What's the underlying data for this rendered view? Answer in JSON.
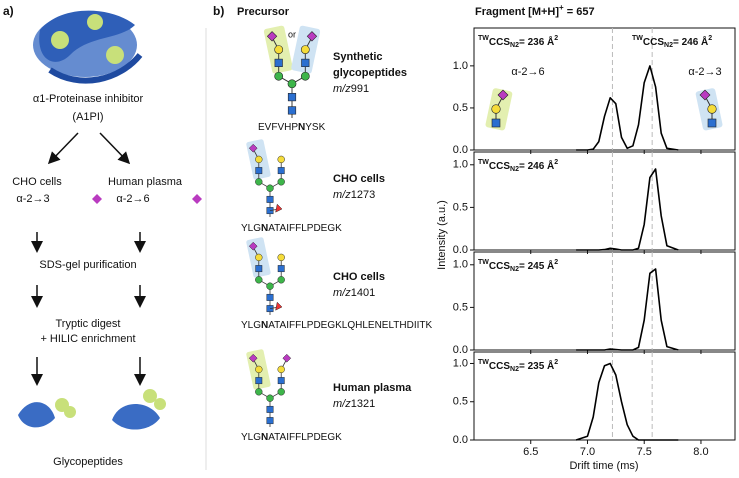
{
  "panel_a": {
    "label": "a)",
    "protein": [
      "α1-Proteinase inhibitor",
      "(A1PI)"
    ],
    "sources": [
      {
        "name": "CHO cells",
        "linkage": "α-2→3"
      },
      {
        "name": "Human plasma",
        "linkage": "α-2→6"
      }
    ],
    "steps": [
      [
        "SDS-gel purification"
      ],
      [
        "Tryptic digest",
        "+ HILIC enrichment"
      ]
    ],
    "product": "Glycopeptides"
  },
  "panel_b": {
    "label": "b)",
    "heading": "Precursor",
    "or": "or",
    "mz_label": "m/z",
    "entries": [
      {
        "name": [
          "Synthetic",
          "glycopeptides"
        ],
        "mz": 991,
        "peptide": [
          "EVFVHP",
          "N",
          "YSK"
        ]
      },
      {
        "name": [
          "CHO cells"
        ],
        "mz": 1273,
        "peptide": [
          "YLG",
          "N",
          "ATAIFFLPDEGK"
        ]
      },
      {
        "name": [
          "CHO cells"
        ],
        "mz": 1401,
        "peptide": [
          "YLG",
          "N",
          "ATAIFFLPDEGKLQHLENELTHDIITK"
        ]
      },
      {
        "name": [
          "Human plasma"
        ],
        "mz": 1321,
        "peptide": [
          "YLG",
          "N",
          "ATAIFFLPDEGK"
        ]
      }
    ]
  },
  "panel_c": {
    "title": [
      "Fragment [M+H]",
      "+",
      " = 657"
    ],
    "xlabel": "Drift time (ms)",
    "ylabel": "Intensity (a.u.)"
  },
  "chart_data": [
    {
      "type": "line",
      "color": "#000000",
      "x": [
        6.9,
        7.0,
        7.05,
        7.1,
        7.15,
        7.2,
        7.25,
        7.3,
        7.35,
        7.4,
        7.45,
        7.5,
        7.55,
        7.6,
        7.65,
        7.7,
        7.8
      ],
      "values": [
        0,
        0,
        0.01,
        0.1,
        0.4,
        0.62,
        0.55,
        0.15,
        0.02,
        0.05,
        0.3,
        0.8,
        1.0,
        0.75,
        0.2,
        0.02,
        0
      ],
      "xlim": [
        6.0,
        8.3
      ],
      "ylim": [
        0,
        1.45
      ],
      "xticks": [
        6.5,
        {
          "value": 7,
          "label": "7.0"
        },
        7.5,
        {
          "value": 8,
          "label": "8.0"
        }
      ],
      "yticks": [
        {
          "value": 0,
          "label": "0.0"
        },
        0.5,
        {
          "value": 1,
          "label": "1.0"
        }
      ],
      "reference_lines": [
        7.22,
        7.57
      ],
      "annotations": [
        [
          "TW",
          "CCS",
          "N2",
          "= 236 Å",
          "2"
        ],
        [
          "TW",
          "CCS",
          "N2",
          "= 246 Å",
          "2"
        ]
      ],
      "linkages": [
        "α-2→6",
        "α-2→3"
      ]
    },
    {
      "type": "line",
      "color": "#000000",
      "x": [
        6.9,
        7.0,
        7.05,
        7.1,
        7.15,
        7.2,
        7.25,
        7.3,
        7.35,
        7.4,
        7.45,
        7.5,
        7.55,
        7.6,
        7.65,
        7.7,
        7.8
      ],
      "values": [
        0,
        0,
        0,
        0,
        0.005,
        0.02,
        0.01,
        0,
        0,
        0,
        0.02,
        0.3,
        0.85,
        0.95,
        0.4,
        0.05,
        0
      ],
      "xlim": [
        6.0,
        8.3
      ],
      "ylim": [
        0,
        1.15
      ],
      "xticks": [
        6.5,
        {
          "value": 7,
          "label": "7.0"
        },
        7.5,
        {
          "value": 8,
          "label": "8.0"
        }
      ],
      "yticks": [
        {
          "value": 0,
          "label": "0.0"
        },
        0.5,
        {
          "value": 1,
          "label": "1.0"
        }
      ],
      "reference_lines": [
        7.22,
        7.57
      ],
      "annotations": [
        [
          "TW",
          "CCS",
          "N2",
          "= 246 Å",
          "2"
        ]
      ]
    },
    {
      "type": "line",
      "color": "#000000",
      "x": [
        6.9,
        7.0,
        7.05,
        7.1,
        7.15,
        7.2,
        7.25,
        7.3,
        7.35,
        7.4,
        7.45,
        7.5,
        7.55,
        7.6,
        7.65,
        7.7,
        7.8
      ],
      "values": [
        0,
        0,
        0,
        0,
        0,
        0.01,
        0.005,
        0,
        0,
        0,
        0.03,
        0.35,
        0.9,
        0.95,
        0.35,
        0.04,
        0
      ],
      "xlim": [
        6.0,
        8.3
      ],
      "ylim": [
        0,
        1.15
      ],
      "xticks": [
        6.5,
        {
          "value": 7,
          "label": "7.0"
        },
        7.5,
        {
          "value": 8,
          "label": "8.0"
        }
      ],
      "yticks": [
        {
          "value": 0,
          "label": "0.0"
        },
        0.5,
        {
          "value": 1,
          "label": "1.0"
        }
      ],
      "reference_lines": [
        7.22,
        7.57
      ],
      "annotations": [
        [
          "TW",
          "CCS",
          "N2",
          "= 245 Å",
          "2"
        ]
      ]
    },
    {
      "type": "line",
      "color": "#000000",
      "x": [
        6.9,
        7.0,
        7.05,
        7.1,
        7.15,
        7.2,
        7.25,
        7.3,
        7.35,
        7.4,
        7.45,
        7.5,
        7.55,
        7.6,
        7.65,
        7.7,
        7.8
      ],
      "values": [
        0,
        0.05,
        0.3,
        0.75,
        0.97,
        1.0,
        0.85,
        0.5,
        0.2,
        0.05,
        0,
        0,
        0,
        0,
        0,
        0,
        0
      ],
      "xlim": [
        6.0,
        8.3
      ],
      "ylim": [
        0,
        1.15
      ],
      "xticks": [
        6.5,
        {
          "value": 7,
          "label": "7.0"
        },
        7.5,
        {
          "value": 8,
          "label": "8.0"
        }
      ],
      "yticks": [
        {
          "value": 0,
          "label": "0.0"
        },
        0.5,
        {
          "value": 1,
          "label": "1.0"
        }
      ],
      "reference_lines": [
        7.22,
        7.57
      ],
      "annotations": [
        [
          "TW",
          "CCS",
          "N2",
          "= 235 Å",
          "2"
        ]
      ]
    }
  ]
}
